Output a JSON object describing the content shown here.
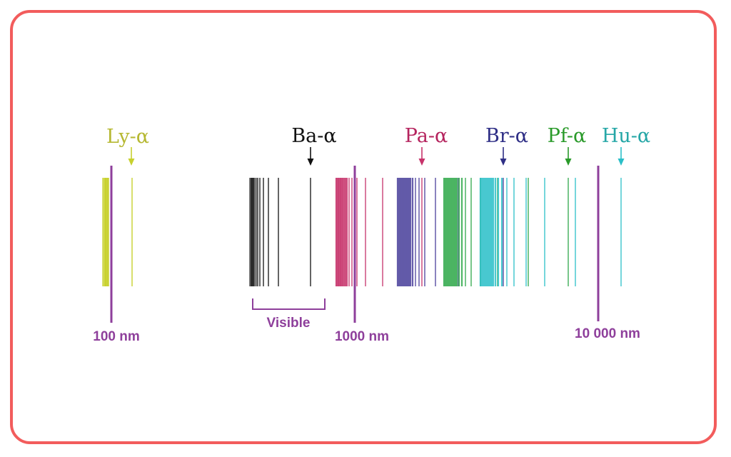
{
  "colors": {
    "frame": "#f25c5c",
    "marker": "#8e3f9b",
    "lyman": "#c8d12e",
    "balmer": "#111111",
    "paschen": "#c7336b",
    "brackett": "#4a3f9b",
    "pfund": "#2fa84a",
    "humphreys": "#2bbfc8"
  },
  "series": [
    {
      "key": "lyman",
      "label": "Ly-α",
      "color": "#b6b832"
    },
    {
      "key": "balmer",
      "label": "Ba-α",
      "color": "#111111"
    },
    {
      "key": "paschen",
      "label": "Pa-α",
      "color": "#b5245e"
    },
    {
      "key": "brackett",
      "label": "Br-α",
      "color": "#2f2f86"
    },
    {
      "key": "pfund",
      "label": "Pf-α",
      "color": "#2a9a2a"
    },
    {
      "key": "humphreys",
      "label": "Hu-α",
      "color": "#26a7a7"
    }
  ],
  "markers": [
    {
      "label": "100 nm",
      "value_nm": 100
    },
    {
      "label": "1000 nm",
      "value_nm": 1000
    },
    {
      "label": "10 000 nm",
      "value_nm": 10000
    }
  ],
  "visible_label": "Visible"
}
